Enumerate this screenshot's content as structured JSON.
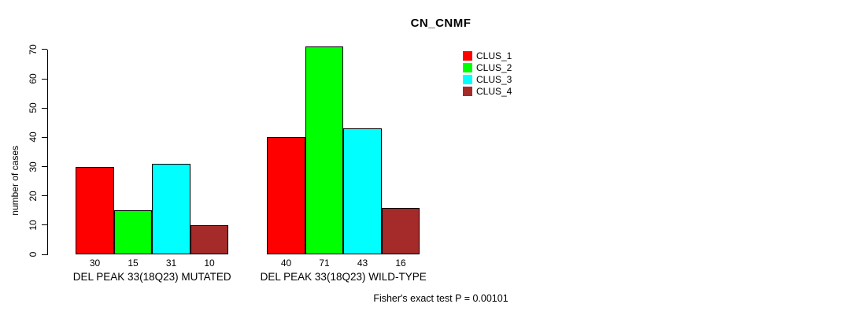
{
  "chart_data": {
    "type": "bar",
    "title": "CN_CNMF",
    "ylabel": "number of cases",
    "xlabel": "",
    "ylim": [
      0,
      70
    ],
    "yticks": [
      0,
      10,
      20,
      30,
      40,
      50,
      60,
      70
    ],
    "grid": false,
    "legend_position": "top-right",
    "bar_border_color": "#000000",
    "series": [
      {
        "name": "CLUS_1",
        "color": "#FF0000"
      },
      {
        "name": "CLUS_2",
        "color": "#00FF00"
      },
      {
        "name": "CLUS_3",
        "color": "#00FFFF"
      },
      {
        "name": "CLUS_4",
        "color": "#A52A2A"
      }
    ],
    "groups": [
      {
        "label": "DEL PEAK 33(18Q23) MUTATED",
        "values": [
          30,
          15,
          31,
          10
        ]
      },
      {
        "label": "DEL PEAK 33(18Q23) WILD-TYPE",
        "values": [
          40,
          71,
          43,
          16
        ]
      }
    ],
    "footnote": "Fisher's exact test P = 0.00101"
  }
}
